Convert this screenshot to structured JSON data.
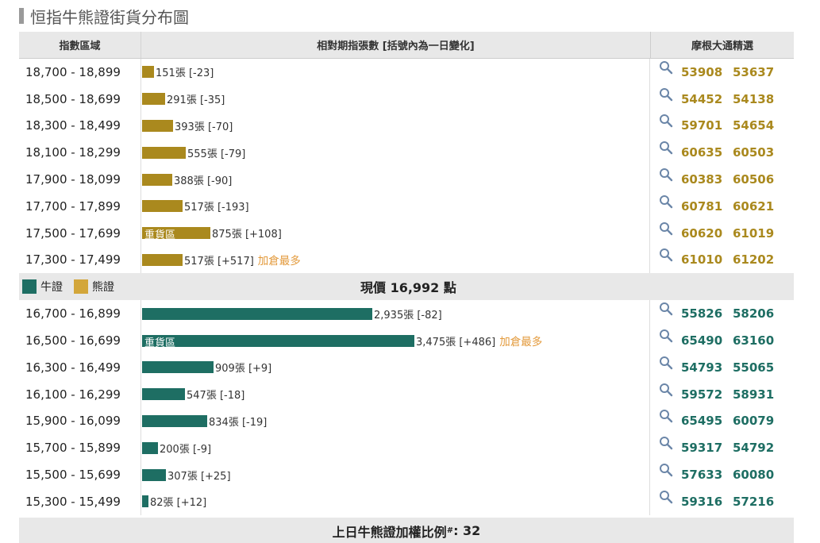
{
  "title": "恒指牛熊證街貨分布圖",
  "header": {
    "range_label": "指數區域",
    "bar_label": "相對期指張數 [括號內為一日變化]",
    "pick_label": "摩根大通精選"
  },
  "colors": {
    "bear": "#aa891e",
    "bull": "#1e6e63",
    "note": "#e39a3c"
  },
  "max_contracts": 3475,
  "bear_rows": [
    {
      "range": "18,700 - 18,899",
      "contracts": 151,
      "text": "151張 [-23]",
      "heavy": "",
      "note": "",
      "codes": [
        "53908",
        "53637"
      ]
    },
    {
      "range": "18,500 - 18,699",
      "contracts": 291,
      "text": "291張 [-35]",
      "heavy": "",
      "note": "",
      "codes": [
        "54452",
        "54138"
      ]
    },
    {
      "range": "18,300 - 18,499",
      "contracts": 393,
      "text": "393張 [-70]",
      "heavy": "",
      "note": "",
      "codes": [
        "59701",
        "54654"
      ]
    },
    {
      "range": "18,100 - 18,299",
      "contracts": 555,
      "text": "555張 [-79]",
      "heavy": "",
      "note": "",
      "codes": [
        "60635",
        "60503"
      ]
    },
    {
      "range": "17,900 - 18,099",
      "contracts": 388,
      "text": "388張 [-90]",
      "heavy": "",
      "note": "",
      "codes": [
        "60383",
        "60506"
      ]
    },
    {
      "range": "17,700 - 17,899",
      "contracts": 517,
      "text": "517張 [-193]",
      "heavy": "",
      "note": "",
      "codes": [
        "60781",
        "60621"
      ]
    },
    {
      "range": "17,500 - 17,699",
      "contracts": 875,
      "text": "875張 [+108]",
      "heavy": "重貨區",
      "note": "",
      "codes": [
        "60620",
        "61019"
      ]
    },
    {
      "range": "17,300 - 17,499",
      "contracts": 517,
      "text": "517張 [+517]",
      "heavy": "",
      "note": "加倉最多",
      "codes": [
        "61010",
        "61202"
      ]
    }
  ],
  "price_row": {
    "bull_legend": "牛證",
    "bear_legend": "熊證",
    "current_price": "現價 16,992 點"
  },
  "bull_rows": [
    {
      "range": "16,700 - 16,899",
      "contracts": 2935,
      "text": "2,935張 [-82]",
      "heavy": "",
      "note": "",
      "codes": [
        "55826",
        "58206"
      ]
    },
    {
      "range": "16,500 - 16,699",
      "contracts": 3475,
      "text": "3,475張 [+486]",
      "heavy": "重貨區",
      "note": "加倉最多",
      "codes": [
        "65490",
        "63160"
      ]
    },
    {
      "range": "16,300 - 16,499",
      "contracts": 909,
      "text": "909張 [+9]",
      "heavy": "",
      "note": "",
      "codes": [
        "54793",
        "55065"
      ]
    },
    {
      "range": "16,100 - 16,299",
      "contracts": 547,
      "text": "547張 [-18]",
      "heavy": "",
      "note": "",
      "codes": [
        "59572",
        "58931"
      ]
    },
    {
      "range": "15,900 - 16,099",
      "contracts": 834,
      "text": "834張 [-19]",
      "heavy": "",
      "note": "",
      "codes": [
        "65495",
        "60079"
      ]
    },
    {
      "range": "15,700 - 15,899",
      "contracts": 200,
      "text": "200張 [-9]",
      "heavy": "",
      "note": "",
      "codes": [
        "59317",
        "54792"
      ]
    },
    {
      "range": "15,500 - 15,699",
      "contracts": 307,
      "text": "307張 [+25]",
      "heavy": "",
      "note": "",
      "codes": [
        "57633",
        "60080"
      ]
    },
    {
      "range": "15,300 - 15,499",
      "contracts": 82,
      "text": "82張 [+12]",
      "heavy": "",
      "note": "",
      "codes": [
        "59316",
        "57216"
      ]
    }
  ],
  "footer": {
    "label": "上日牛熊證加權比例",
    "mark": "#",
    "value": ": 32"
  }
}
